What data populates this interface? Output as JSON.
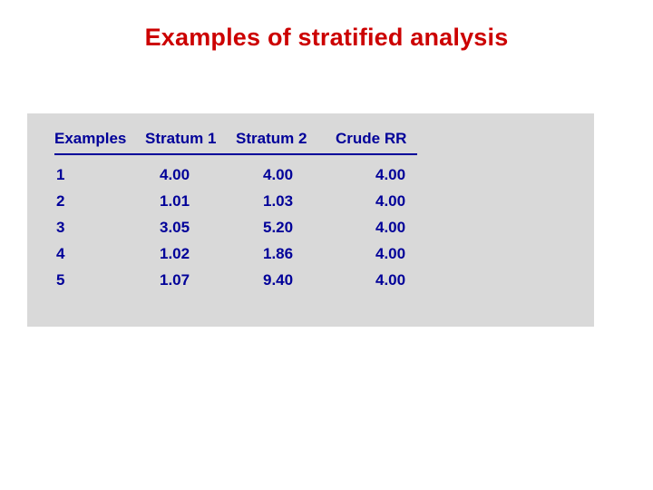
{
  "title": {
    "text": "Examples of stratified analysis",
    "color": "#cc0000",
    "fontsize": 27
  },
  "panel": {
    "background_color": "#d9d9d9"
  },
  "table": {
    "type": "table",
    "text_color": "#000099",
    "rule_color": "#000099",
    "fontsize": 17,
    "columns": [
      "Examples",
      "Stratum 1",
      "Stratum 2",
      "Crude RR"
    ],
    "rows": [
      [
        "1",
        "4.00",
        "4.00",
        "4.00"
      ],
      [
        "2",
        "1.01",
        "1.03",
        "4.00"
      ],
      [
        "3",
        "3.05",
        "5.20",
        "4.00"
      ],
      [
        "4",
        "1.02",
        "1.86",
        "4.00"
      ],
      [
        "5",
        "1.07",
        "9.40",
        "4.00"
      ]
    ]
  }
}
